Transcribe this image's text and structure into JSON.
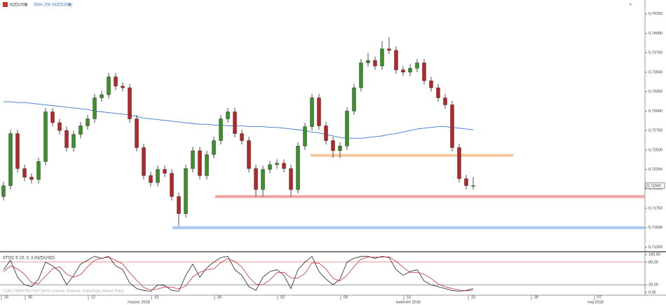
{
  "chart_data": [
    {
      "type": "candlestick",
      "symbol": "NZDUSD",
      "open": [
        0.719,
        0.7204,
        0.7271,
        0.7226,
        0.7215,
        0.7212,
        0.7235,
        0.7299,
        0.7285,
        0.7275,
        0.7253,
        0.727,
        0.7281,
        0.729,
        0.7317,
        0.7321,
        0.7344,
        0.7332,
        0.733,
        0.729,
        0.7253,
        0.7217,
        0.7208,
        0.7225,
        0.722,
        0.719,
        0.7168,
        0.7226,
        0.7249,
        0.7217,
        0.7244,
        0.7262,
        0.729,
        0.7299,
        0.7271,
        0.7262,
        0.7226,
        0.7199,
        0.7225,
        0.7231,
        0.7233,
        0.7226,
        0.7199,
        0.7255,
        0.728,
        0.7317,
        0.7281,
        0.7262,
        0.7249,
        0.7255,
        0.73,
        0.733,
        0.7362,
        0.7365,
        0.7358,
        0.738,
        0.7378,
        0.7353,
        0.735,
        0.7355,
        0.7362,
        0.7339,
        0.733,
        0.7317,
        0.7308,
        0.7253,
        0.7213,
        0.7204
      ],
      "high": [
        0.7209,
        0.7276,
        0.7276,
        0.7231,
        0.722,
        0.724,
        0.7304,
        0.7304,
        0.729,
        0.728,
        0.7275,
        0.7286,
        0.7295,
        0.7322,
        0.7326,
        0.7349,
        0.7349,
        0.7337,
        0.7335,
        0.7295,
        0.7258,
        0.7222,
        0.723,
        0.723,
        0.7225,
        0.7195,
        0.7231,
        0.7254,
        0.7254,
        0.7249,
        0.7267,
        0.7295,
        0.7304,
        0.7304,
        0.7276,
        0.7267,
        0.7231,
        0.723,
        0.7236,
        0.7238,
        0.7238,
        0.7231,
        0.726,
        0.7285,
        0.7322,
        0.7322,
        0.7286,
        0.7267,
        0.726,
        0.7305,
        0.7335,
        0.7367,
        0.7375,
        0.737,
        0.739,
        0.7395,
        0.7383,
        0.7358,
        0.736,
        0.7367,
        0.7367,
        0.7344,
        0.7335,
        0.7322,
        0.7313,
        0.7258,
        0.7218,
        0.7215
      ],
      "low": [
        0.7185,
        0.7199,
        0.7221,
        0.721,
        0.7207,
        0.7207,
        0.723,
        0.728,
        0.727,
        0.7248,
        0.7248,
        0.7265,
        0.7276,
        0.7285,
        0.7312,
        0.7316,
        0.7327,
        0.7325,
        0.7285,
        0.7248,
        0.7212,
        0.7203,
        0.7203,
        0.7215,
        0.7185,
        0.7152,
        0.7163,
        0.7221,
        0.7212,
        0.7212,
        0.7239,
        0.7257,
        0.7285,
        0.7266,
        0.7257,
        0.7221,
        0.719,
        0.719,
        0.722,
        0.7226,
        0.7221,
        0.719,
        0.7194,
        0.725,
        0.7275,
        0.7276,
        0.7257,
        0.724,
        0.724,
        0.725,
        0.7295,
        0.7325,
        0.7357,
        0.7353,
        0.7353,
        0.7373,
        0.7348,
        0.7345,
        0.7345,
        0.735,
        0.7334,
        0.7325,
        0.7312,
        0.7303,
        0.7248,
        0.7208,
        0.7199,
        0.7199
      ],
      "close": [
        0.7204,
        0.7271,
        0.7226,
        0.7215,
        0.7212,
        0.7235,
        0.7299,
        0.7285,
        0.7275,
        0.7253,
        0.727,
        0.7281,
        0.729,
        0.7317,
        0.7321,
        0.7344,
        0.7332,
        0.733,
        0.729,
        0.7253,
        0.7217,
        0.7208,
        0.7225,
        0.722,
        0.719,
        0.7168,
        0.7226,
        0.7249,
        0.7217,
        0.7244,
        0.7262,
        0.729,
        0.7299,
        0.7271,
        0.7262,
        0.7226,
        0.7199,
        0.7225,
        0.7231,
        0.7233,
        0.7226,
        0.7199,
        0.7255,
        0.728,
        0.7317,
        0.7281,
        0.7262,
        0.7249,
        0.7255,
        0.73,
        0.733,
        0.7362,
        0.7365,
        0.7358,
        0.738,
        0.7378,
        0.7353,
        0.735,
        0.7355,
        0.7362,
        0.7339,
        0.733,
        0.7317,
        0.7308,
        0.7253,
        0.7213,
        0.7204,
        0.7204
      ],
      "up_color": "#3c8f2a",
      "down_color": "#b3262a",
      "overlays": [
        {
          "name": "SMA 200 (NZDUSD)",
          "color": "#3a78c8",
          "values": [
            0.7312,
            0.7312,
            0.7311,
            0.7311,
            0.731,
            0.7309,
            0.7308,
            0.7307,
            0.7306,
            0.7305,
            0.7304,
            0.7303,
            0.7302,
            0.73,
            0.7299,
            0.7298,
            0.7297,
            0.7296,
            0.7295,
            0.7293,
            0.7291,
            0.729,
            0.7289,
            0.7288,
            0.7287,
            0.7286,
            0.7285,
            0.7284,
            0.7283,
            0.7283,
            0.7282,
            0.7282,
            0.7281,
            0.7281,
            0.7281,
            0.728,
            0.728,
            0.728,
            0.7279,
            0.7279,
            0.7278,
            0.7277,
            0.7276,
            0.7275,
            0.7273,
            0.7272,
            0.727,
            0.7268,
            0.7266,
            0.7265,
            0.7265,
            0.7265,
            0.7266,
            0.7267,
            0.7268,
            0.727,
            0.7271,
            0.7273,
            0.7275,
            0.7277,
            0.7278,
            0.7279,
            0.728,
            0.728,
            0.7279,
            0.7278,
            0.7277,
            0.7276
          ]
        }
      ],
      "levels": [
        {
          "value": 0.7243,
          "color": "#f3c79a"
        },
        {
          "value": 0.719,
          "color": "#f2a3a3"
        },
        {
          "value": 0.715,
          "color": "#a9c8ef"
        }
      ],
      "last_price": {
        "value": 0.7204,
        "label": "0,72040"
      },
      "ylim": [
        0.712,
        0.7432
      ],
      "yticks": [
        {
          "value": 0.7425,
          "label": "0,74250"
        },
        {
          "value": 0.74,
          "label": "0,74000"
        },
        {
          "value": 0.7375,
          "label": "0,73750"
        },
        {
          "value": 0.735,
          "label": "0,73500"
        },
        {
          "value": 0.7325,
          "label": "0,73250"
        },
        {
          "value": 0.73,
          "label": "0,73000"
        },
        {
          "value": 0.7275,
          "label": "0,72750"
        },
        {
          "value": 0.725,
          "label": "0,72500"
        },
        {
          "value": 0.7225,
          "label": "0,72250"
        },
        {
          "value": 0.72,
          "label": "0,72000"
        },
        {
          "value": 0.7175,
          "label": "0,71750"
        },
        {
          "value": 0.715,
          "label": "0,71500"
        },
        {
          "value": 0.7125,
          "label": "0,71250"
        }
      ],
      "week_labels": [
        "26",
        "05",
        "12",
        "19",
        "26",
        "02",
        "09",
        "16",
        "23",
        "30",
        "07"
      ],
      "month_labels": [
        "marzec 2018",
        "kwiecień 2018",
        "maj 2018"
      ],
      "note": "CZAS ORIENTACYJNY   Strefa czasowa: Bruksela, Kopenhaga, Madryt, Paryż"
    },
    {
      "type": "line",
      "title": "STOC 5 10; 3; 3 (NZDUSD)",
      "series": [
        {
          "color": "#222222",
          "values": [
            60,
            85,
            40,
            20,
            15,
            35,
            80,
            70,
            55,
            20,
            45,
            75,
            85,
            95,
            90,
            95,
            70,
            60,
            25,
            10,
            5,
            3,
            20,
            18,
            5,
            3,
            45,
            75,
            40,
            65,
            80,
            92,
            95,
            60,
            45,
            15,
            5,
            40,
            55,
            60,
            45,
            10,
            60,
            80,
            95,
            55,
            35,
            20,
            35,
            80,
            90,
            95,
            95,
            90,
            95,
            92,
            60,
            45,
            55,
            60,
            30,
            20,
            15,
            10,
            5,
            3,
            5,
            10
          ]
        },
        {
          "color": "#c8323a",
          "values": [
            55,
            70,
            62,
            48,
            25,
            23,
            43,
            62,
            68,
            48,
            40,
            47,
            68,
            85,
            90,
            93,
            85,
            75,
            52,
            32,
            13,
            6,
            9,
            14,
            14,
            9,
            17,
            41,
            53,
            60,
            62,
            79,
            89,
            82,
            67,
            40,
            22,
            20,
            33,
            52,
            53,
            38,
            38,
            50,
            78,
            77,
            62,
            37,
            30,
            45,
            68,
            88,
            93,
            93,
            93,
            94,
            82,
            66,
            53,
            53,
            48,
            37,
            22,
            15,
            10,
            6,
            4,
            6
          ]
        }
      ],
      "ylim": [
        0,
        100
      ],
      "yticks": [
        {
          "value": 100,
          "label": "100,00"
        },
        {
          "value": 80,
          "label": "80,00"
        },
        {
          "value": 20,
          "label": "20,00"
        },
        {
          "value": 0,
          "label": "0,00"
        }
      ]
    }
  ]
}
